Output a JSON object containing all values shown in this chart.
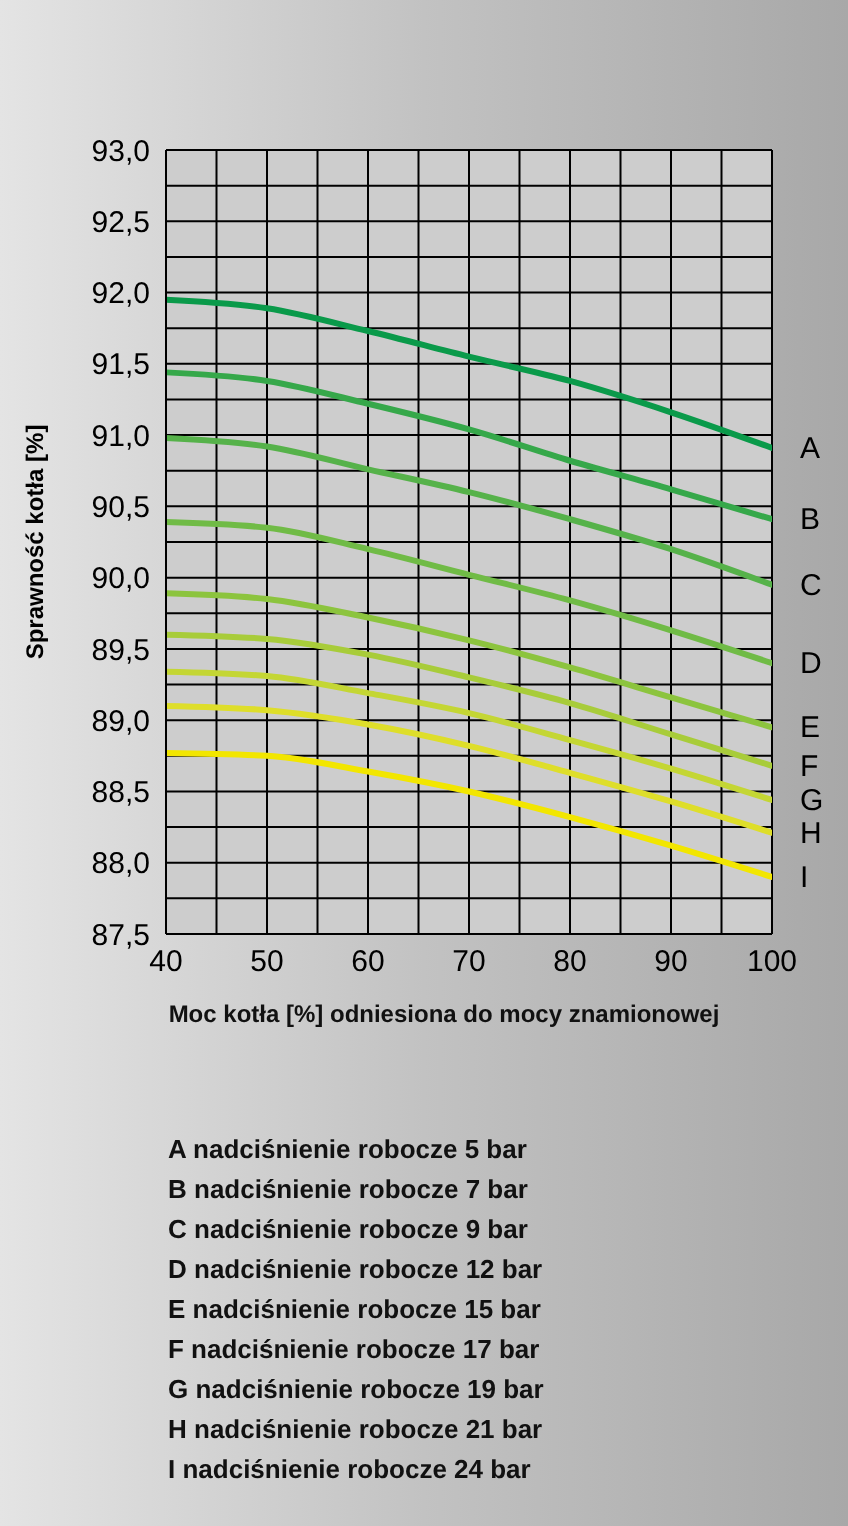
{
  "chart_data": {
    "type": "line",
    "xlabel": "Moc kotła [%] odniesiona do mocy znamionowej",
    "ylabel": "Sprawność kotła [%]",
    "x": [
      40,
      50,
      60,
      70,
      80,
      90,
      100
    ],
    "xlim": [
      40,
      100
    ],
    "xticks": [
      40,
      {
        "value": 45,
        "label": null
      },
      50,
      {
        "value": 55,
        "label": null
      },
      60,
      {
        "value": 65,
        "label": null
      },
      70,
      {
        "value": 75,
        "label": null
      },
      80,
      {
        "value": 85,
        "label": null
      },
      90,
      {
        "value": 95,
        "label": null
      },
      100
    ],
    "ylim": [
      87.5,
      93.0
    ],
    "yticks": [
      {
        "value": 87.5,
        "label": "87,5"
      },
      {
        "value": 87.75,
        "label": null
      },
      {
        "value": 88.0,
        "label": "88,0"
      },
      {
        "value": 88.25,
        "label": null
      },
      {
        "value": 88.5,
        "label": "88,5"
      },
      {
        "value": 88.75,
        "label": null
      },
      {
        "value": 89.0,
        "label": "89,0"
      },
      {
        "value": 89.25,
        "label": null
      },
      {
        "value": 89.5,
        "label": "89,5"
      },
      {
        "value": 89.75,
        "label": null
      },
      {
        "value": 90.0,
        "label": "90,0"
      },
      {
        "value": 90.25,
        "label": null
      },
      {
        "value": 90.5,
        "label": "90,5"
      },
      {
        "value": 90.75,
        "label": null
      },
      {
        "value": 91.0,
        "label": "91,0"
      },
      {
        "value": 91.25,
        "label": null
      },
      {
        "value": 91.5,
        "label": "91,5"
      },
      {
        "value": 91.75,
        "label": null
      },
      {
        "value": 92.0,
        "label": "92,0"
      },
      {
        "value": 92.25,
        "label": null
      },
      {
        "value": 92.5,
        "label": "92,5"
      },
      {
        "value": 92.75,
        "label": null
      },
      {
        "value": 93.0,
        "label": "93,0"
      }
    ],
    "grid": true,
    "legend": false,
    "marker": "none",
    "line_style": "solid",
    "series": [
      {
        "name": "A",
        "color": "#0a9a4a",
        "values": [
          91.95,
          91.89,
          91.73,
          91.55,
          91.38,
          91.16,
          90.91
        ]
      },
      {
        "name": "B",
        "color": "#36a84a",
        "values": [
          91.44,
          91.38,
          91.22,
          91.04,
          90.82,
          90.62,
          90.41
        ]
      },
      {
        "name": "C",
        "color": "#56b24a",
        "values": [
          90.98,
          90.92,
          90.76,
          90.6,
          90.41,
          90.2,
          89.95
        ]
      },
      {
        "name": "D",
        "color": "#70bb46",
        "values": [
          90.39,
          90.35,
          90.2,
          90.02,
          89.84,
          89.63,
          89.4
        ]
      },
      {
        "name": "E",
        "color": "#8cc43e",
        "values": [
          89.89,
          89.85,
          89.72,
          89.56,
          89.37,
          89.16,
          88.95
        ]
      },
      {
        "name": "F",
        "color": "#a8cc3a",
        "values": [
          89.6,
          89.57,
          89.46,
          89.3,
          89.12,
          88.9,
          88.68
        ]
      },
      {
        "name": "G",
        "color": "#c4d634",
        "values": [
          89.34,
          89.31,
          89.19,
          89.05,
          88.86,
          88.66,
          88.44
        ]
      },
      {
        "name": "H",
        "color": "#dede2a",
        "values": [
          89.1,
          89.07,
          88.97,
          88.82,
          88.63,
          88.43,
          88.21
        ]
      },
      {
        "name": "I",
        "color": "#f2e600",
        "values": [
          88.77,
          88.75,
          88.64,
          88.5,
          88.32,
          88.12,
          87.9
        ]
      }
    ],
    "annotations": [
      "A nadciśnienie robocze 5 bar",
      "B nadciśnienie robocze 7 bar",
      "C nadciśnienie robocze 9 bar",
      "D nadciśnienie robocze 12 bar",
      "E nadciśnienie robocze 15 bar",
      "F nadciśnienie robocze 17 bar",
      "G nadciśnienie robocze 19 bar",
      "H nadciśnienie robocze 21 bar",
      "I nadciśnienie robocze 24 bar"
    ]
  }
}
